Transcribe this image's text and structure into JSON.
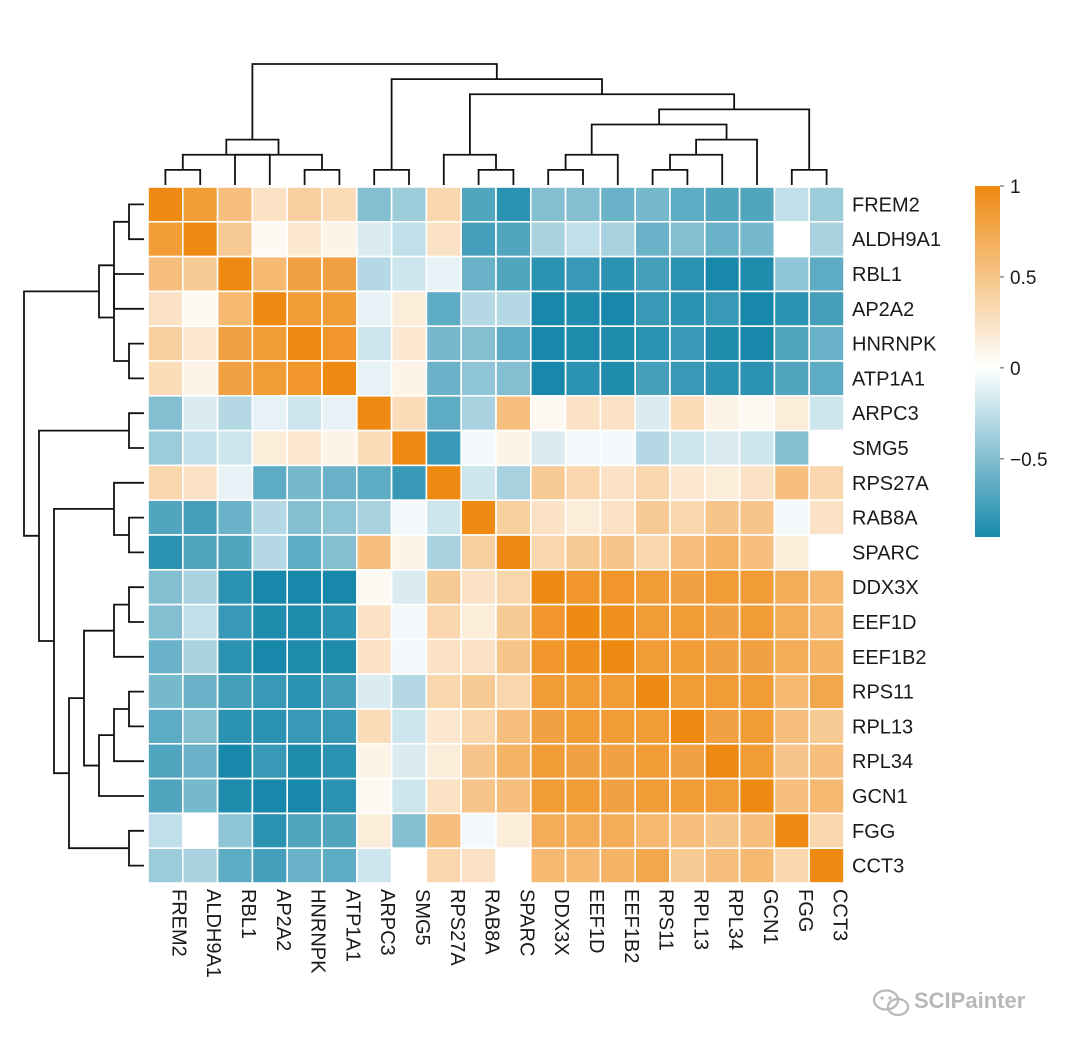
{
  "chart_data": {
    "type": "heatmap",
    "title": "",
    "rows": [
      "FREM2",
      "ALDH9A1",
      "RBL1",
      "AP2A2",
      "HNRNPK",
      "ATP1A1",
      "ARPC3",
      "SMG5",
      "RPS27A",
      "RAB8A",
      "SPARC",
      "DDX3X",
      "EEF1D",
      "EEF1B2",
      "RPS11",
      "RPL13",
      "RPL34",
      "GCN1",
      "FGG",
      "CCT3"
    ],
    "columns": [
      "FREM2",
      "ALDH9A1",
      "RBL1",
      "AP2A2",
      "HNRNPK",
      "ATP1A1",
      "ARPC3",
      "SMG5",
      "RPS27A",
      "RAB8A",
      "SPARC",
      "DDX3X",
      "EEF1D",
      "EEF1B2",
      "RPS11",
      "RPL13",
      "RPL34",
      "GCN1",
      "FGG",
      "CCT3"
    ],
    "values": [
      [
        1.0,
        0.85,
        0.55,
        0.25,
        0.4,
        0.3,
        -0.5,
        -0.4,
        0.35,
        -0.7,
        -0.85,
        -0.5,
        -0.5,
        -0.6,
        -0.55,
        -0.65,
        -0.7,
        -0.7,
        -0.25,
        -0.4
      ],
      [
        0.85,
        1.0,
        0.45,
        0.05,
        0.2,
        0.1,
        -0.15,
        -0.25,
        0.25,
        -0.75,
        -0.7,
        -0.35,
        -0.25,
        -0.35,
        -0.6,
        -0.5,
        -0.6,
        -0.55,
        0.0,
        -0.35
      ],
      [
        0.55,
        0.45,
        1.0,
        0.6,
        0.8,
        0.8,
        -0.3,
        -0.2,
        -0.1,
        -0.6,
        -0.7,
        -0.85,
        -0.8,
        -0.85,
        -0.75,
        -0.85,
        -0.95,
        -0.9,
        -0.45,
        -0.65
      ],
      [
        0.25,
        0.05,
        0.6,
        1.0,
        0.85,
        0.85,
        -0.1,
        0.15,
        -0.65,
        -0.3,
        -0.3,
        -0.95,
        -0.9,
        -0.95,
        -0.8,
        -0.85,
        -0.8,
        -0.95,
        -0.85,
        -0.75
      ],
      [
        0.4,
        0.2,
        0.8,
        0.85,
        1.0,
        0.9,
        -0.2,
        0.2,
        -0.55,
        -0.5,
        -0.65,
        -0.95,
        -0.9,
        -0.9,
        -0.85,
        -0.8,
        -0.9,
        -0.95,
        -0.7,
        -0.6
      ],
      [
        0.3,
        0.1,
        0.8,
        0.85,
        0.9,
        1.0,
        -0.1,
        0.1,
        -0.6,
        -0.45,
        -0.5,
        -0.95,
        -0.85,
        -0.9,
        -0.75,
        -0.8,
        -0.85,
        -0.85,
        -0.7,
        -0.65
      ],
      [
        -0.5,
        -0.15,
        -0.3,
        -0.1,
        -0.2,
        -0.1,
        1.0,
        0.3,
        -0.65,
        -0.35,
        0.55,
        0.05,
        0.25,
        0.25,
        -0.15,
        0.3,
        0.1,
        0.05,
        0.15,
        -0.2
      ],
      [
        -0.4,
        -0.25,
        -0.2,
        0.15,
        0.2,
        0.1,
        0.3,
        1.0,
        -0.8,
        -0.05,
        0.1,
        -0.15,
        -0.05,
        -0.05,
        -0.3,
        -0.2,
        -0.15,
        -0.2,
        -0.5,
        0.0
      ],
      [
        0.35,
        0.25,
        -0.1,
        -0.65,
        -0.55,
        -0.6,
        -0.65,
        -0.8,
        1.0,
        -0.2,
        -0.35,
        0.45,
        0.35,
        0.25,
        0.35,
        0.2,
        0.15,
        0.25,
        0.55,
        0.35
      ],
      [
        -0.7,
        -0.75,
        -0.6,
        -0.3,
        -0.5,
        -0.45,
        -0.35,
        -0.05,
        -0.2,
        1.0,
        0.4,
        0.25,
        0.15,
        0.25,
        0.45,
        0.35,
        0.5,
        0.5,
        -0.05,
        0.25
      ],
      [
        -0.85,
        -0.7,
        -0.7,
        -0.3,
        -0.65,
        -0.5,
        0.55,
        0.1,
        -0.35,
        0.4,
        1.0,
        0.35,
        0.45,
        0.5,
        0.35,
        0.55,
        0.65,
        0.55,
        0.15,
        0.0
      ],
      [
        -0.5,
        -0.35,
        -0.85,
        -0.95,
        -0.95,
        -0.95,
        0.05,
        -0.15,
        0.45,
        0.25,
        0.35,
        1.0,
        0.9,
        0.9,
        0.85,
        0.8,
        0.85,
        0.85,
        0.7,
        0.6
      ],
      [
        -0.5,
        -0.25,
        -0.8,
        -0.9,
        -0.9,
        -0.85,
        0.25,
        -0.05,
        0.35,
        0.15,
        0.45,
        0.9,
        1.0,
        0.95,
        0.85,
        0.85,
        0.8,
        0.85,
        0.7,
        0.6
      ],
      [
        -0.6,
        -0.35,
        -0.85,
        -0.95,
        -0.9,
        -0.9,
        0.25,
        -0.05,
        0.25,
        0.25,
        0.5,
        0.9,
        0.95,
        1.0,
        0.85,
        0.85,
        0.8,
        0.8,
        0.7,
        0.65
      ],
      [
        -0.55,
        -0.6,
        -0.75,
        -0.8,
        -0.85,
        -0.75,
        -0.15,
        -0.3,
        0.35,
        0.45,
        0.35,
        0.85,
        0.85,
        0.85,
        1.0,
        0.85,
        0.85,
        0.85,
        0.6,
        0.75
      ],
      [
        -0.65,
        -0.5,
        -0.85,
        -0.85,
        -0.8,
        -0.8,
        0.3,
        -0.2,
        0.2,
        0.35,
        0.55,
        0.8,
        0.85,
        0.85,
        0.85,
        1.0,
        0.8,
        0.85,
        0.55,
        0.45
      ],
      [
        -0.7,
        -0.6,
        -0.95,
        -0.8,
        -0.9,
        -0.85,
        0.1,
        -0.15,
        0.15,
        0.5,
        0.65,
        0.85,
        0.8,
        0.8,
        0.85,
        0.8,
        1.0,
        0.85,
        0.5,
        0.55
      ],
      [
        -0.7,
        -0.55,
        -0.9,
        -0.95,
        -0.95,
        -0.85,
        0.05,
        -0.2,
        0.25,
        0.5,
        0.55,
        0.85,
        0.85,
        0.8,
        0.85,
        0.85,
        0.85,
        1.0,
        0.55,
        0.6
      ],
      [
        -0.25,
        0.0,
        -0.45,
        -0.85,
        -0.7,
        -0.7,
        0.15,
        -0.5,
        0.55,
        -0.05,
        0.15,
        0.7,
        0.7,
        0.7,
        0.6,
        0.55,
        0.5,
        0.55,
        1.0,
        0.35
      ],
      [
        -0.4,
        -0.35,
        -0.65,
        -0.75,
        -0.6,
        -0.65,
        -0.2,
        0.0,
        0.35,
        0.25,
        0.0,
        0.6,
        0.6,
        0.65,
        0.75,
        0.45,
        0.55,
        0.6,
        0.35,
        1.0
      ]
    ],
    "colorbar": {
      "ticks": [
        1,
        0.5,
        0,
        -0.5
      ],
      "tick_labels": [
        "1",
        "0.5",
        "0",
        "−0.5"
      ],
      "range": [
        -0.93,
        1
      ],
      "colors": {
        "high": "#ee8a12",
        "mid": "#ffffff",
        "low": "#1888aa"
      }
    },
    "row_dendrogram": [
      [
        0,
        1
      ],
      [
        4,
        5
      ],
      [
        3,
        20
      ],
      [
        2,
        21
      ],
      [
        22,
        23
      ],
      [
        6,
        7
      ],
      [
        9,
        10
      ],
      [
        8,
        26
      ],
      [
        11,
        12
      ],
      [
        28,
        13
      ],
      [
        14,
        15
      ],
      [
        30,
        16
      ],
      [
        31,
        17
      ],
      [
        29,
        32
      ],
      [
        18,
        19
      ],
      [
        33,
        34
      ],
      [
        27,
        35
      ],
      [
        25,
        36
      ],
      [
        24,
        37
      ]
    ],
    "col_dendrogram": [
      [
        0,
        1
      ],
      [
        4,
        5
      ],
      [
        3,
        20
      ],
      [
        2,
        21
      ],
      [
        22,
        23
      ],
      [
        6,
        7
      ],
      [
        9,
        10
      ],
      [
        8,
        26
      ],
      [
        11,
        12
      ],
      [
        28,
        13
      ],
      [
        14,
        15
      ],
      [
        30,
        16
      ],
      [
        31,
        17
      ],
      [
        29,
        32
      ],
      [
        18,
        19
      ],
      [
        33,
        34
      ],
      [
        27,
        35
      ],
      [
        25,
        36
      ],
      [
        24,
        37
      ]
    ]
  },
  "watermark": {
    "text": "SCIPainter",
    "icon": "wechat-icon"
  }
}
